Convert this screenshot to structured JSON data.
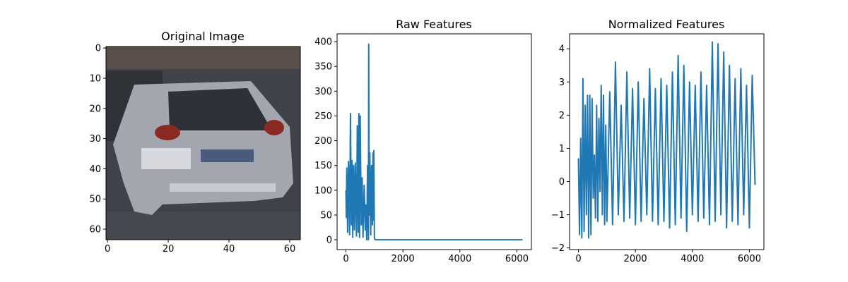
{
  "colors": {
    "series": "#1f77b4",
    "axes": "#000000",
    "background": "#ffffff"
  },
  "chart_data": [
    {
      "type": "image",
      "title": "Original Image",
      "xlabel": "",
      "ylabel": "",
      "xlim": [
        -0.5,
        63.5
      ],
      "ylim": [
        63.5,
        -0.5
      ],
      "xticks": [
        0,
        20,
        40,
        60
      ],
      "yticks": [
        0,
        10,
        20,
        30,
        40,
        50,
        60
      ],
      "xtick_labels": [
        "0",
        "20",
        "40",
        "60"
      ],
      "ytick_labels": [
        "0",
        "10",
        "20",
        "30",
        "40",
        "50",
        "60"
      ],
      "image_size": [
        64,
        64
      ],
      "image_content": "rear view of a silver hatchback car on a street",
      "grid": false
    },
    {
      "type": "line",
      "title": "Raw Features",
      "xlabel": "",
      "ylabel": "",
      "xlim": [
        -310,
        6510
      ],
      "ylim": [
        -19.8,
        415.8
      ],
      "xticks": [
        0,
        2000,
        4000,
        6000
      ],
      "yticks": [
        0,
        50,
        100,
        150,
        200,
        250,
        300,
        350,
        400
      ],
      "xtick_labels": [
        "0",
        "2000",
        "4000",
        "6000"
      ],
      "ytick_labels": [
        "0",
        "50",
        "100",
        "150",
        "200",
        "250",
        "300",
        "350",
        "400"
      ],
      "grid": false,
      "series": [
        {
          "x": [
            0,
            15,
            30,
            60,
            90,
            130,
            160,
            190,
            215,
            240,
            270,
            300,
            330,
            370,
            400,
            430,
            455,
            480,
            500,
            540,
            570,
            600,
            640,
            680,
            700,
            730,
            760,
            790,
            800,
            815,
            840,
            870,
            900,
            930,
            950,
            970,
            980,
            1000,
            1010,
            1050,
            6200
          ],
          "y": [
            100,
            45,
            145,
            15,
            158,
            10,
            255,
            30,
            160,
            5,
            150,
            20,
            155,
            8,
            230,
            15,
            255,
            5,
            250,
            30,
            125,
            5,
            110,
            20,
            70,
            0,
            150,
            0,
            395,
            50,
            175,
            10,
            150,
            30,
            175,
            40,
            180,
            5,
            1,
            0,
            0
          ]
        }
      ]
    },
    {
      "type": "line",
      "title": "Normalized Features",
      "xlabel": "",
      "ylabel": "",
      "xlim": [
        -310,
        6510
      ],
      "ylim": [
        -2.05,
        4.45
      ],
      "xticks": [
        0,
        2000,
        4000,
        6000
      ],
      "yticks": [
        -2,
        -1,
        0,
        1,
        2,
        3,
        4
      ],
      "xtick_labels": [
        "0",
        "2000",
        "4000",
        "6000"
      ],
      "ytick_labels": [
        "−2",
        "−1",
        "0",
        "1",
        "2",
        "3",
        "4"
      ],
      "grid": false,
      "series": [
        {
          "x": [
            0,
            40,
            80,
            120,
            160,
            200,
            240,
            280,
            320,
            360,
            400,
            440,
            480,
            520,
            560,
            600,
            640,
            680,
            720,
            760,
            800,
            840,
            880,
            920,
            960,
            1000,
            1100,
            1200,
            1300,
            1400,
            1500,
            1600,
            1700,
            1800,
            1900,
            2000,
            2100,
            2200,
            2300,
            2400,
            2500,
            2600,
            2700,
            2800,
            2900,
            3000,
            3100,
            3200,
            3300,
            3400,
            3500,
            3600,
            3700,
            3800,
            3900,
            4000,
            4100,
            4200,
            4300,
            4400,
            4500,
            4600,
            4700,
            4800,
            4900,
            5000,
            5100,
            5200,
            5300,
            5400,
            5500,
            5600,
            5700,
            5800,
            5900,
            6000,
            6100,
            6200
          ],
          "y": [
            0.7,
            -1.6,
            1.3,
            -1.7,
            3.1,
            -1.5,
            2.3,
            -1.0,
            2.6,
            -1.7,
            2.6,
            -1.6,
            2.5,
            -0.5,
            0.8,
            -1.1,
            2.3,
            -1.2,
            1.9,
            -0.3,
            2.9,
            -1.0,
            2.6,
            -1.3,
            1.7,
            -1.2,
            2.7,
            -1.3,
            3.6,
            -1.0,
            2.3,
            -1.2,
            3.3,
            -1.1,
            2.8,
            -1.3,
            3.0,
            -1.2,
            2.5,
            -1.0,
            3.4,
            -1.2,
            2.8,
            -1.3,
            3.1,
            -1.2,
            2.9,
            -1.4,
            3.3,
            -1.3,
            3.8,
            -1.1,
            3.5,
            -1.5,
            3.0,
            -1.0,
            2.9,
            -1.2,
            3.3,
            -1.1,
            2.9,
            -1.3,
            4.2,
            -1.2,
            4.15,
            -1.0,
            3.9,
            -1.4,
            3.5,
            -1.2,
            3.1,
            -1.3,
            3.4,
            -1.0,
            2.9,
            -1.4,
            3.2,
            -0.1
          ]
        }
      ]
    }
  ]
}
